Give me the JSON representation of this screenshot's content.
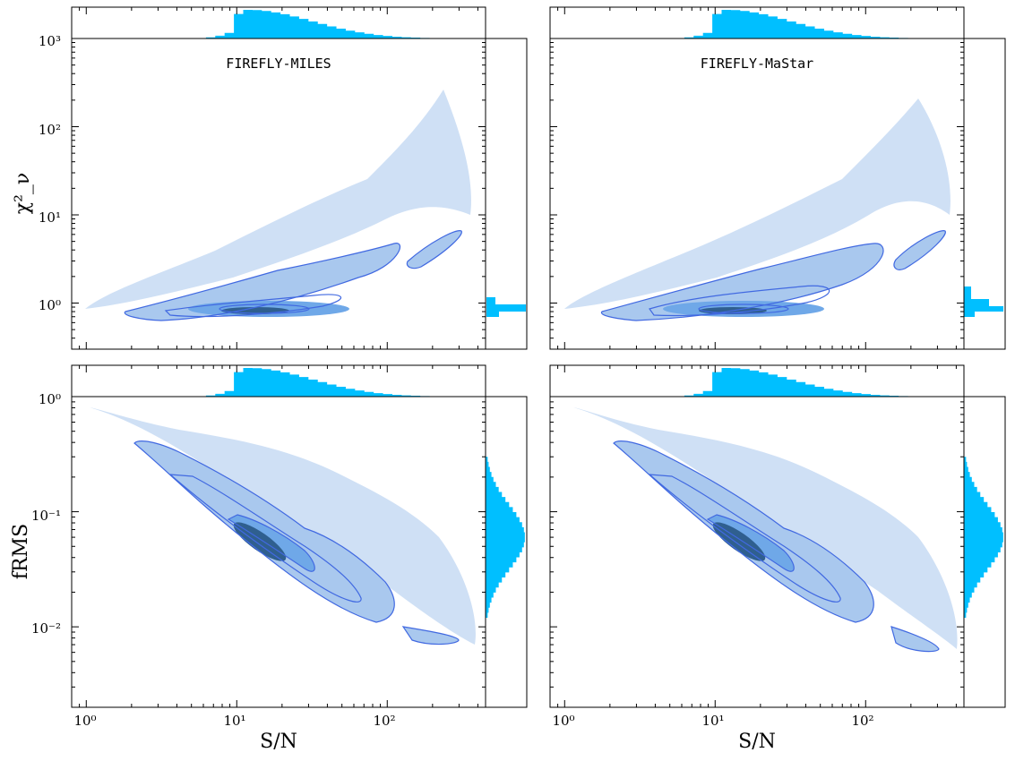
{
  "colors": {
    "hist": "#00bfff",
    "scatter_light": "#a9c8ee",
    "scatter_mid": "#6fa8e8",
    "contour": "#4169e1",
    "core": "#2f5f8f"
  },
  "chart_data": [
    {
      "type": "scatter",
      "panel": "top-left",
      "title": "FIREFLY-MILES",
      "xlabel": "",
      "ylabel": "χ²_ν",
      "xscale": "log",
      "yscale": "log",
      "xlim": [
        0.8,
        450
      ],
      "ylim": [
        0.3,
        1000
      ],
      "xtick_labels": [
        "",
        "",
        ""
      ],
      "ytick_labels": [
        "10⁰",
        "10¹",
        "10²",
        "10³"
      ],
      "yticks": [
        1,
        10,
        100,
        1000
      ],
      "density_peak": {
        "x": 13,
        "y": 0.85
      },
      "hist_x_peak": 12,
      "hist_y_peak": 0.85
    },
    {
      "type": "scatter",
      "panel": "top-right",
      "title": "FIREFLY-MaStar",
      "xlabel": "",
      "ylabel": "",
      "xscale": "log",
      "yscale": "log",
      "xlim": [
        0.8,
        450
      ],
      "ylim": [
        0.3,
        1000
      ],
      "xtick_labels": [
        "",
        "",
        ""
      ],
      "ytick_labels": [
        "",
        "",
        "",
        ""
      ],
      "yticks": [
        1,
        10,
        100,
        1000
      ],
      "density_peak": {
        "x": 13,
        "y": 0.85
      },
      "hist_x_peak": 12,
      "hist_y_peak": 0.85
    },
    {
      "type": "scatter",
      "panel": "bottom-left",
      "title": "",
      "xlabel": "S/N",
      "ylabel": "fRMS",
      "xscale": "log",
      "yscale": "log",
      "xlim": [
        0.8,
        450
      ],
      "ylim": [
        0.002,
        1.0
      ],
      "xtick_labels": [
        "10⁰",
        "10¹",
        "10²"
      ],
      "xticks": [
        1,
        10,
        100
      ],
      "ytick_labels": [
        "10⁻²",
        "10⁻¹",
        "10⁰"
      ],
      "yticks": [
        0.01,
        0.1,
        1
      ],
      "density_peak": {
        "x": 14,
        "y": 0.06
      },
      "hist_x_peak": 12,
      "hist_y_peak": 0.06
    },
    {
      "type": "scatter",
      "panel": "bottom-right",
      "title": "",
      "xlabel": "S/N",
      "ylabel": "",
      "xscale": "log",
      "yscale": "log",
      "xlim": [
        0.8,
        450
      ],
      "ylim": [
        0.002,
        1.0
      ],
      "xtick_labels": [
        "10⁰",
        "10¹",
        "10²"
      ],
      "xticks": [
        1,
        10,
        100
      ],
      "ytick_labels": [
        "",
        "",
        ""
      ],
      "yticks": [
        0.01,
        0.1,
        1
      ],
      "density_peak": {
        "x": 14,
        "y": 0.06
      },
      "hist_x_peak": 12,
      "hist_y_peak": 0.06
    }
  ]
}
